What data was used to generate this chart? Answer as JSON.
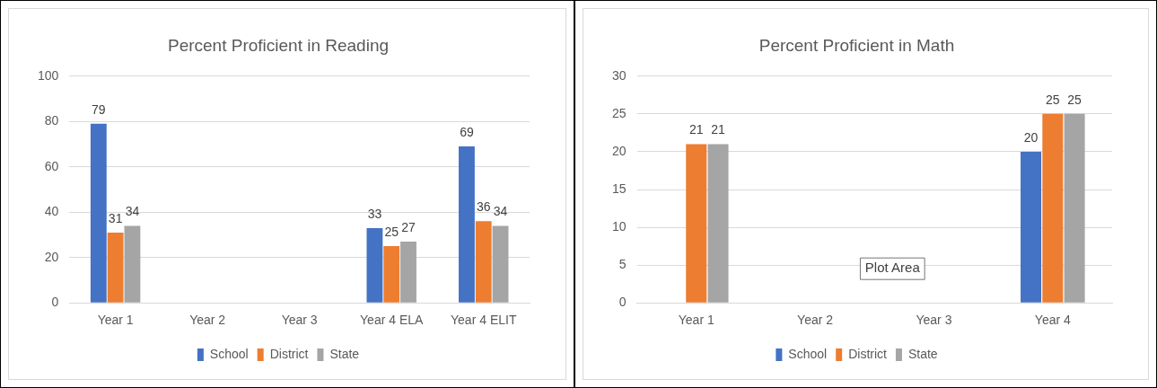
{
  "chart_data": [
    {
      "type": "bar",
      "title": "Percent Proficient in Reading",
      "categories": [
        "Year 1",
        "Year 2",
        "Year 3",
        "Year 4 ELA",
        "Year 4 ELIT"
      ],
      "series": [
        {
          "name": "School",
          "color": "#4472c4",
          "values": [
            79,
            null,
            null,
            33,
            69
          ]
        },
        {
          "name": "District",
          "color": "#ed7d31",
          "values": [
            31,
            null,
            null,
            25,
            36
          ]
        },
        {
          "name": "State",
          "color": "#a5a5a5",
          "values": [
            34,
            null,
            null,
            27,
            34
          ]
        }
      ],
      "ylim": [
        0,
        100
      ],
      "yticks": [
        0,
        20,
        40,
        60,
        80,
        100
      ],
      "grid": "y",
      "legend": "bottom",
      "data_labels": true
    },
    {
      "type": "bar",
      "title": "Percent Proficient in Math",
      "categories": [
        "Year 1",
        "Year 2",
        "Year 3",
        "Year 4"
      ],
      "series": [
        {
          "name": "School",
          "color": "#4472c4",
          "values": [
            null,
            null,
            null,
            20
          ]
        },
        {
          "name": "District",
          "color": "#ed7d31",
          "values": [
            21,
            null,
            null,
            25
          ]
        },
        {
          "name": "State",
          "color": "#a5a5a5",
          "values": [
            21,
            null,
            null,
            25
          ]
        }
      ],
      "ylim": [
        0,
        30
      ],
      "yticks": [
        0,
        5,
        10,
        15,
        20,
        25,
        30
      ],
      "grid": "y",
      "legend": "bottom",
      "data_labels": true,
      "annotations": [
        "Plot Area"
      ]
    }
  ]
}
